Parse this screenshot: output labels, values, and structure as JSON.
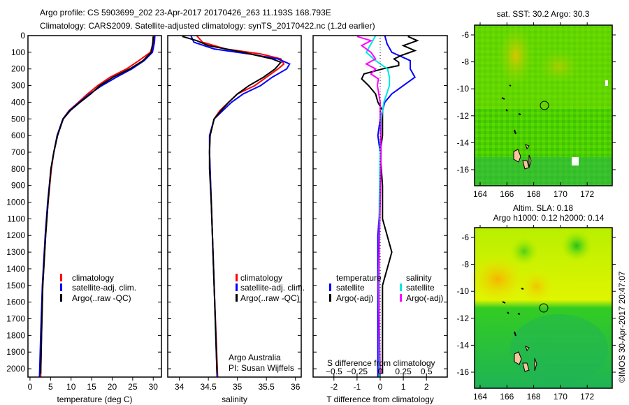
{
  "title_line1": "Argo profile: CS 5903699_202 23-Apr-2017 20170426_263 11.193S 168.793E",
  "title_line2": "Climatology: CARS2009. Satellite-adjusted climatology: synTS_20170422.nc (1.2d earlier)",
  "colors": {
    "climatology": "#ff0000",
    "satellite": "#0000ff",
    "argo": "#000000",
    "s_satellite": "#00e5e5",
    "s_argo": "#ff00ff"
  },
  "chart_data": [
    {
      "type": "line",
      "name": "temperature",
      "xlabel": "temperature (deg C)",
      "xlim": [
        -0.5,
        32
      ],
      "ylim": [
        2050,
        0
      ],
      "xticks": [
        0,
        5,
        10,
        15,
        20,
        25,
        30
      ],
      "yticks": [
        0,
        100,
        200,
        300,
        400,
        500,
        600,
        700,
        800,
        900,
        1000,
        1100,
        1200,
        1300,
        1400,
        1500,
        1600,
        1700,
        1800,
        1900,
        2000
      ],
      "legend": [
        "climatology",
        "satellite-adj. clim.",
        "Argo(..raw -QC)"
      ],
      "legend_position": "lower-center",
      "series": [
        {
          "name": "climatology",
          "color": "#ff0000",
          "depth": [
            0,
            40,
            100,
            150,
            200,
            250,
            300,
            350,
            400,
            450,
            500,
            600,
            700,
            800,
            1000,
            1200,
            1500,
            1800,
            2050
          ],
          "values": [
            30.2,
            30.1,
            29.3,
            26.5,
            23.5,
            19.5,
            16.5,
            14.0,
            11.8,
            9.5,
            8.0,
            6.7,
            5.8,
            5.2,
            4.4,
            3.8,
            3.1,
            2.8,
            2.6
          ]
        },
        {
          "name": "satellite-adj. clim.",
          "color": "#0000ff",
          "depth": [
            0,
            40,
            100,
            150,
            200,
            250,
            300,
            350,
            400,
            450,
            500,
            600,
            700,
            800,
            1000,
            1200,
            1500,
            1800,
            2050
          ],
          "values": [
            30.4,
            30.3,
            29.8,
            27.8,
            24.8,
            21.0,
            17.5,
            14.5,
            12.0,
            9.6,
            8.0,
            6.6,
            5.8,
            5.1,
            4.3,
            3.7,
            3.0,
            2.6,
            2.3
          ]
        },
        {
          "name": "Argo(..raw -QC)",
          "color": "#000000",
          "depth": [
            5,
            40,
            100,
            150,
            200,
            250,
            300,
            350,
            400,
            450,
            500,
            600,
            700,
            800,
            1000,
            1200,
            1500,
            1800,
            2030
          ],
          "values": [
            30.0,
            29.9,
            29.5,
            27.5,
            24.3,
            20.2,
            17.0,
            14.8,
            12.2,
            9.8,
            8.1,
            6.7,
            5.8,
            5.1,
            4.4,
            3.8,
            3.1,
            2.8,
            2.6
          ]
        }
      ]
    },
    {
      "type": "line",
      "name": "salinity",
      "xlabel": "salinity",
      "xlim": [
        33.8,
        36.1
      ],
      "ylim": [
        2050,
        0
      ],
      "xticks": [
        34,
        34.5,
        35,
        35.5,
        36
      ],
      "legend": [
        "climatology",
        "satellite-adj. clim.",
        "Argo(..raw -QC)"
      ],
      "annotation": [
        "Argo Australia",
        "PI: Susan Wijffels"
      ],
      "series": [
        {
          "name": "climatology",
          "color": "#ff0000",
          "depth": [
            0,
            40,
            80,
            110,
            140,
            170,
            200,
            250,
            300,
            350,
            400,
            450,
            500,
            600,
            700,
            800,
            1000,
            1500,
            2050
          ],
          "values": [
            34.3,
            34.4,
            34.8,
            35.4,
            35.75,
            35.8,
            35.7,
            35.5,
            35.3,
            35.0,
            34.85,
            34.7,
            34.6,
            34.53,
            34.52,
            34.53,
            34.55,
            34.6,
            34.66
          ]
        },
        {
          "name": "satellite-adj. clim.",
          "color": "#0000ff",
          "depth": [
            0,
            40,
            80,
            110,
            140,
            170,
            200,
            250,
            300,
            350,
            400,
            450,
            500,
            600,
            700,
            800,
            1000,
            1500,
            2050
          ],
          "values": [
            34.2,
            34.25,
            34.6,
            35.2,
            35.7,
            35.9,
            35.85,
            35.6,
            35.4,
            35.1,
            34.9,
            34.75,
            34.6,
            34.52,
            34.52,
            34.53,
            34.55,
            34.6,
            34.65
          ]
        },
        {
          "name": "Argo(..raw -QC)",
          "color": "#000000",
          "depth": [
            5,
            30,
            60,
            100,
            140,
            160,
            180,
            200,
            250,
            300,
            350,
            400,
            450,
            500,
            600,
            700,
            800,
            1000,
            1500,
            2030
          ],
          "values": [
            34.05,
            34.3,
            34.5,
            35.1,
            35.6,
            35.75,
            35.7,
            35.65,
            35.45,
            35.2,
            35.0,
            34.85,
            34.72,
            34.6,
            34.53,
            34.52,
            34.52,
            34.55,
            34.6,
            34.65
          ]
        }
      ]
    },
    {
      "type": "line",
      "name": "difference",
      "xlabel": "T difference from climatology",
      "xlabel_top": "S difference from climatology",
      "xlim_T": [
        -2.9,
        2.9
      ],
      "xlim_S": [
        -0.725,
        0.725
      ],
      "xticks_T": [
        -2,
        -1,
        0,
        1,
        2
      ],
      "xticks_S": [
        -0.5,
        -0.25,
        0,
        0.25,
        0.5
      ],
      "legend_left_title": "temperature",
      "legend_right_title": "salinity",
      "legend": [
        "satellite",
        "Argo(-adj)",
        "satellite",
        "Argo(-adj)"
      ],
      "series": [
        {
          "name": "T satellite",
          "color": "#0000ff",
          "units": "T",
          "depth": [
            0,
            50,
            100,
            150,
            200,
            250,
            300,
            350,
            400,
            450,
            500,
            600,
            700,
            800,
            1000,
            1200,
            1500,
            1800,
            2050
          ],
          "values": [
            0.2,
            0.3,
            0.5,
            1.3,
            1.3,
            1.5,
            1.0,
            0.5,
            0.2,
            0.1,
            0.0,
            -0.1,
            0.0,
            0.0,
            0.0,
            -0.1,
            -0.1,
            -0.1,
            -0.1
          ]
        },
        {
          "name": "T Argo(-adj)",
          "color": "#000000",
          "units": "T",
          "depth": [
            5,
            30,
            60,
            90,
            120,
            140,
            160,
            180,
            200,
            230,
            260,
            300,
            350,
            400,
            450,
            500,
            600,
            700,
            900,
            1100,
            1300,
            1500,
            1700,
            2030
          ],
          "values": [
            1.2,
            1.6,
            1.0,
            1.5,
            0.9,
            0.6,
            0.8,
            0.8,
            0.1,
            -0.7,
            -0.8,
            -0.5,
            -0.2,
            -0.1,
            0.1,
            0.1,
            0.1,
            0.0,
            0.1,
            0.1,
            0.5,
            0.1,
            0.1,
            0.1
          ]
        },
        {
          "name": "S satellite",
          "color": "#00e5e5",
          "units": "S",
          "depth": [
            0,
            50,
            100,
            150,
            200,
            250,
            300,
            400,
            500,
            700,
            1000,
            1500,
            2050
          ],
          "values": [
            -0.05,
            -0.1,
            -0.15,
            -0.05,
            0.08,
            0.1,
            0.1,
            0.04,
            0.01,
            0.0,
            -0.01,
            -0.01,
            -0.01
          ]
        },
        {
          "name": "S Argo(-adj)",
          "color": "#ff00ff",
          "units": "S",
          "depth": [
            5,
            30,
            60,
            100,
            140,
            170,
            200,
            230,
            260,
            300,
            400,
            500,
            700,
            1000,
            1500,
            2030
          ],
          "values": [
            -0.25,
            -0.1,
            -0.2,
            -0.1,
            -0.05,
            -0.15,
            -0.05,
            -0.1,
            -0.02,
            -0.03,
            0.0,
            0.0,
            0.01,
            0.0,
            -0.02,
            0.0
          ]
        }
      ]
    }
  ],
  "maps": [
    {
      "title_lines": [
        "sat. SST: 30.2  Argo: 30.3"
      ],
      "xticks": [
        "164",
        "166",
        "168",
        "170",
        "172"
      ],
      "yticks": [
        "-6",
        "-8",
        "-10",
        "-12",
        "-14",
        "-16"
      ]
    },
    {
      "title_lines": [
        "Altim. SLA: 0.18",
        "Argo h1000: 0.12 h2000: 0.14"
      ],
      "xticks": [
        "164",
        "166",
        "168",
        "170",
        "172"
      ],
      "yticks": [
        "-6",
        "-8",
        "-10",
        "-12",
        "-14",
        "-16"
      ]
    }
  ],
  "credit": "©IMOS 30-Apr-2017 20:47:07"
}
